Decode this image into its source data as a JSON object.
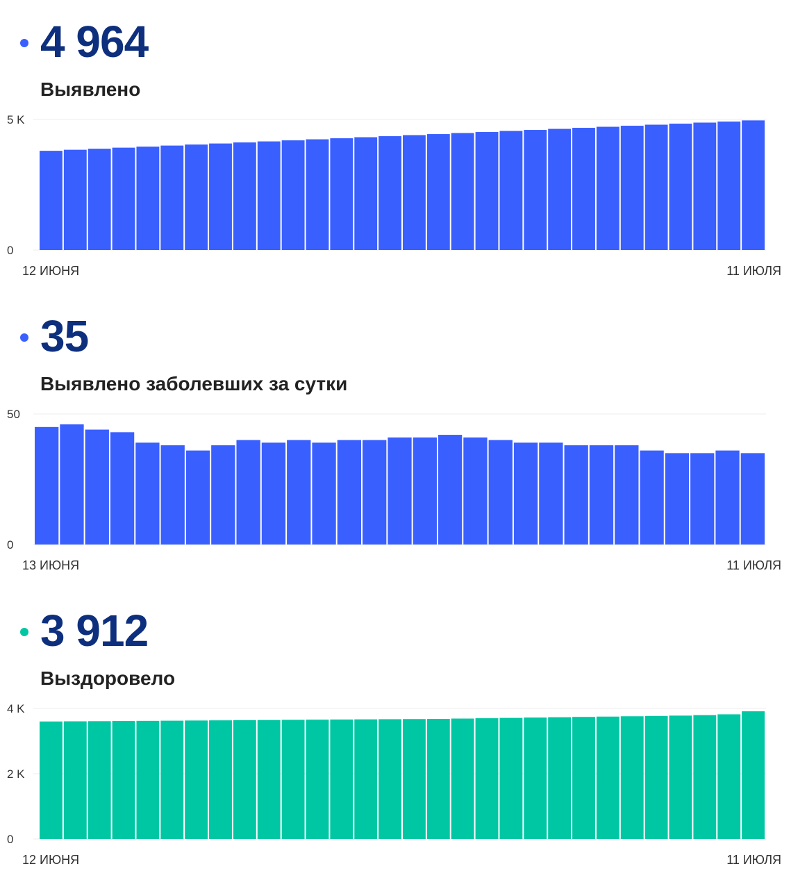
{
  "charts": [
    {
      "value": "4 964",
      "label": "Выявлено",
      "start_label": "12 ИЮНЯ",
      "end_label": "11 ИЮЛЯ",
      "color": "#3a5fff",
      "y_ticks": [
        "0",
        "5 K"
      ]
    },
    {
      "value": "35",
      "label": "Выявлено заболевших за сутки",
      "start_label": "13 ИЮНЯ",
      "end_label": "11 ИЮЛЯ",
      "color": "#3a5fff",
      "y_ticks": [
        "0",
        "50"
      ]
    },
    {
      "value": "3 912",
      "label": "Выздоровело",
      "start_label": "12 ИЮНЯ",
      "end_label": "11 ИЮЛЯ",
      "color": "#00c7a3",
      "y_ticks": [
        "0",
        "2 K",
        "4 K"
      ]
    }
  ],
  "chart_data": [
    {
      "type": "bar",
      "title": "Выявлено",
      "x_start": "12 ИЮНЯ",
      "x_end": "11 ИЮЛЯ",
      "ylim": [
        0,
        5000
      ],
      "values": [
        3800,
        3840,
        3880,
        3920,
        3960,
        4000,
        4040,
        4080,
        4120,
        4160,
        4200,
        4240,
        4280,
        4320,
        4360,
        4400,
        4440,
        4480,
        4520,
        4560,
        4600,
        4640,
        4680,
        4720,
        4760,
        4800,
        4840,
        4880,
        4920,
        4964
      ]
    },
    {
      "type": "bar",
      "title": "Выявлено заболевших за сутки",
      "x_start": "13 ИЮНЯ",
      "x_end": "11 ИЮЛЯ",
      "ylim": [
        0,
        50
      ],
      "values": [
        45,
        46,
        44,
        43,
        39,
        38,
        36,
        38,
        40,
        39,
        40,
        39,
        40,
        40,
        41,
        41,
        42,
        41,
        40,
        39,
        39,
        38,
        38,
        38,
        36,
        35,
        35,
        36,
        35
      ]
    },
    {
      "type": "bar",
      "title": "Выздоровело",
      "x_start": "12 ИЮНЯ",
      "x_end": "11 ИЮЛЯ",
      "ylim": [
        0,
        4000
      ],
      "values": [
        3600,
        3605,
        3610,
        3615,
        3620,
        3625,
        3630,
        3635,
        3640,
        3645,
        3650,
        3655,
        3660,
        3665,
        3670,
        3675,
        3680,
        3690,
        3700,
        3710,
        3720,
        3730,
        3740,
        3750,
        3760,
        3770,
        3780,
        3795,
        3820,
        3912
      ]
    }
  ]
}
